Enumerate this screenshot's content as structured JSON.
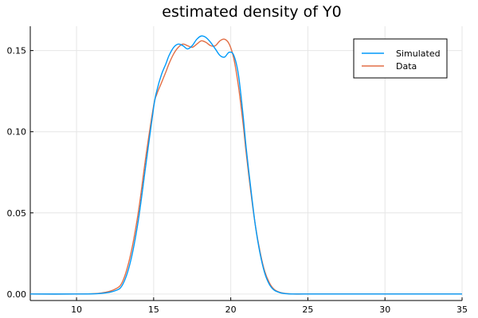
{
  "chart_data": {
    "type": "line",
    "title": "estimated density of Y0",
    "xlabel": "",
    "ylabel": "",
    "xlim": [
      7,
      35
    ],
    "ylim": [
      -0.004,
      0.165
    ],
    "xticks": [
      10,
      15,
      20,
      25,
      30,
      35
    ],
    "yticks": [
      0.0,
      0.05,
      0.1,
      0.15
    ],
    "xtick_labels": [
      "10",
      "15",
      "20",
      "25",
      "30",
      "35"
    ],
    "ytick_labels": [
      "0.00",
      "0.05",
      "0.10",
      "0.15"
    ],
    "grid": true,
    "legend_position": "top-right",
    "series": [
      {
        "name": "Simulated",
        "color": "#009AFA",
        "x": [
          7,
          10,
          11.5,
          12.5,
          13.0,
          13.5,
          14.0,
          14.5,
          15.0,
          15.2,
          15.5,
          15.8,
          16.0,
          16.3,
          16.6,
          16.9,
          17.2,
          17.5,
          17.8,
          18.1,
          18.4,
          18.7,
          19.0,
          19.3,
          19.6,
          19.9,
          20.2,
          20.5,
          20.8,
          21.0,
          21.3,
          21.6,
          21.9,
          22.2,
          22.5,
          22.8,
          23.2,
          23.6,
          24.0,
          25.0,
          28.0,
          32.0,
          35.0
        ],
        "y": [
          0.0,
          0.0,
          0.0003,
          0.002,
          0.006,
          0.02,
          0.045,
          0.08,
          0.115,
          0.125,
          0.135,
          0.142,
          0.147,
          0.152,
          0.154,
          0.153,
          0.151,
          0.153,
          0.157,
          0.159,
          0.158,
          0.155,
          0.151,
          0.147,
          0.146,
          0.149,
          0.147,
          0.135,
          0.11,
          0.09,
          0.065,
          0.042,
          0.025,
          0.013,
          0.006,
          0.0025,
          0.0008,
          0.0002,
          0.0,
          0.0,
          0.0,
          0.0,
          0.0
        ]
      },
      {
        "name": "Data",
        "color": "#E26F46",
        "x": [
          7,
          10,
          11.5,
          12.5,
          13.0,
          13.5,
          14.0,
          14.5,
          15.0,
          15.2,
          15.5,
          15.8,
          16.0,
          16.3,
          16.6,
          16.9,
          17.2,
          17.5,
          17.8,
          18.1,
          18.4,
          18.7,
          19.0,
          19.3,
          19.6,
          19.9,
          20.2,
          20.5,
          20.8,
          21.0,
          21.3,
          21.6,
          21.9,
          22.2,
          22.5,
          22.8,
          23.2,
          23.6,
          24.0,
          25.0,
          28.0,
          32.0,
          35.0
        ],
        "y": [
          0.0,
          0.0,
          0.0005,
          0.003,
          0.008,
          0.024,
          0.05,
          0.085,
          0.116,
          0.123,
          0.13,
          0.137,
          0.142,
          0.148,
          0.152,
          0.154,
          0.153,
          0.152,
          0.154,
          0.156,
          0.155,
          0.153,
          0.153,
          0.156,
          0.157,
          0.154,
          0.145,
          0.128,
          0.105,
          0.087,
          0.063,
          0.042,
          0.026,
          0.014,
          0.007,
          0.003,
          0.001,
          0.0003,
          0.0,
          0.0,
          0.0,
          0.0,
          0.0
        ]
      }
    ]
  }
}
